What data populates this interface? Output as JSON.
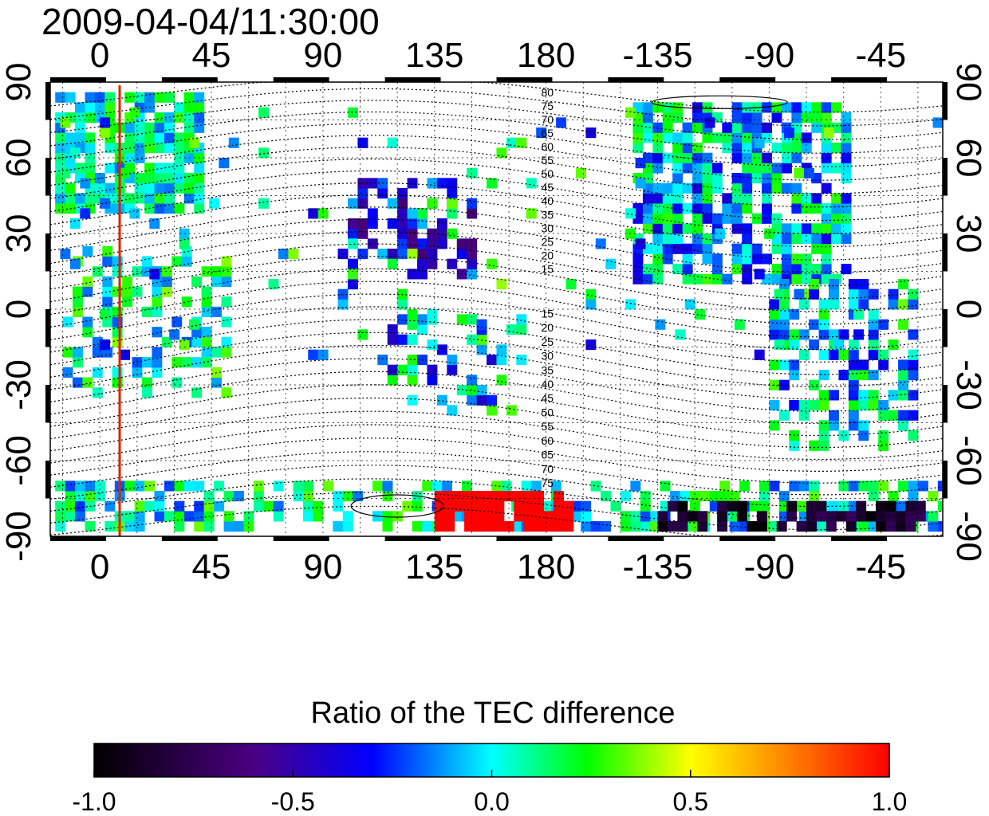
{
  "chart_data": {
    "type": "heatmap",
    "title": "2009-04-04/11:30:00",
    "x_ticks": [
      "0",
      "45",
      "90",
      "135",
      "180",
      "-135",
      "-90",
      "-45"
    ],
    "y_ticks_left": [
      "90",
      "60",
      "30",
      "0",
      "-30",
      "-60",
      "-90"
    ],
    "y_ticks_right": [
      "90",
      "60",
      "30",
      "0",
      "-30",
      "-60",
      "-90"
    ],
    "xlim": [
      -20,
      340
    ],
    "ylim": [
      -90,
      90
    ],
    "grid": true,
    "marker_longitude": 8,
    "contour_labels_north": [
      "80",
      "75",
      "70",
      "65",
      "60",
      "55",
      "50",
      "45",
      "40",
      "35",
      "30",
      "25",
      "20",
      "15"
    ],
    "contour_labels_south": [
      "15",
      "20",
      "25",
      "30",
      "35",
      "40",
      "45",
      "50",
      "55",
      "60",
      "65",
      "70",
      "75"
    ],
    "colorbar": {
      "title": "Ratio of the TEC difference",
      "ticks": [
        "-1.0",
        "-0.5",
        "0.0",
        "0.5",
        "1.0"
      ],
      "range": [
        -1.0,
        1.0
      ],
      "colors": [
        "#000000",
        "#4b0082",
        "#0000ff",
        "#00ffff",
        "#00ff00",
        "#ffff00",
        "#ff0000"
      ]
    }
  }
}
